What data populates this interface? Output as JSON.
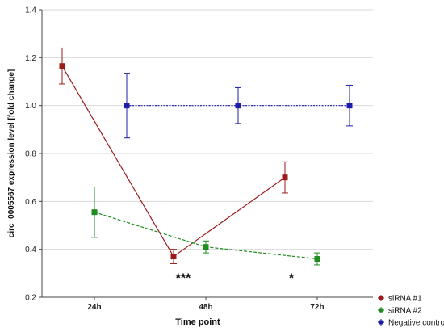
{
  "chart_data": {
    "type": "line",
    "title": "",
    "xlabel": "Time point",
    "ylabel": "circ_0005567 expression level [fold change]",
    "categories": [
      "24h",
      "48h",
      "72h"
    ],
    "ylim": [
      0.2,
      1.4
    ],
    "yticks": [
      "0.2",
      "0.4",
      "0.6",
      "0.8",
      "1.0",
      "1.2",
      "1.4"
    ],
    "grid": true,
    "legend_position": "bottom-right",
    "series": [
      {
        "name": "siRNA #1",
        "color": "#9b1b1b",
        "line_style": "solid",
        "values": [
          1.165,
          0.37,
          0.7
        ],
        "errors": [
          0.075,
          0.03,
          0.065
        ]
      },
      {
        "name": "siRNA #2",
        "color": "#1e8c1e",
        "line_style": "dashed",
        "values": [
          0.555,
          0.41,
          0.36
        ],
        "errors": [
          0.105,
          0.025,
          0.025
        ]
      },
      {
        "name": "Negative control",
        "color": "#1c1ca8",
        "line_style": "dotted",
        "values": [
          1.0,
          1.0,
          1.0
        ],
        "errors": [
          0.135,
          0.075,
          0.085
        ]
      }
    ],
    "annotations": [
      {
        "text": "***",
        "category_index": 1,
        "value": 0.29
      },
      {
        "text": "*",
        "category_index": 2,
        "value": 0.29
      }
    ]
  }
}
